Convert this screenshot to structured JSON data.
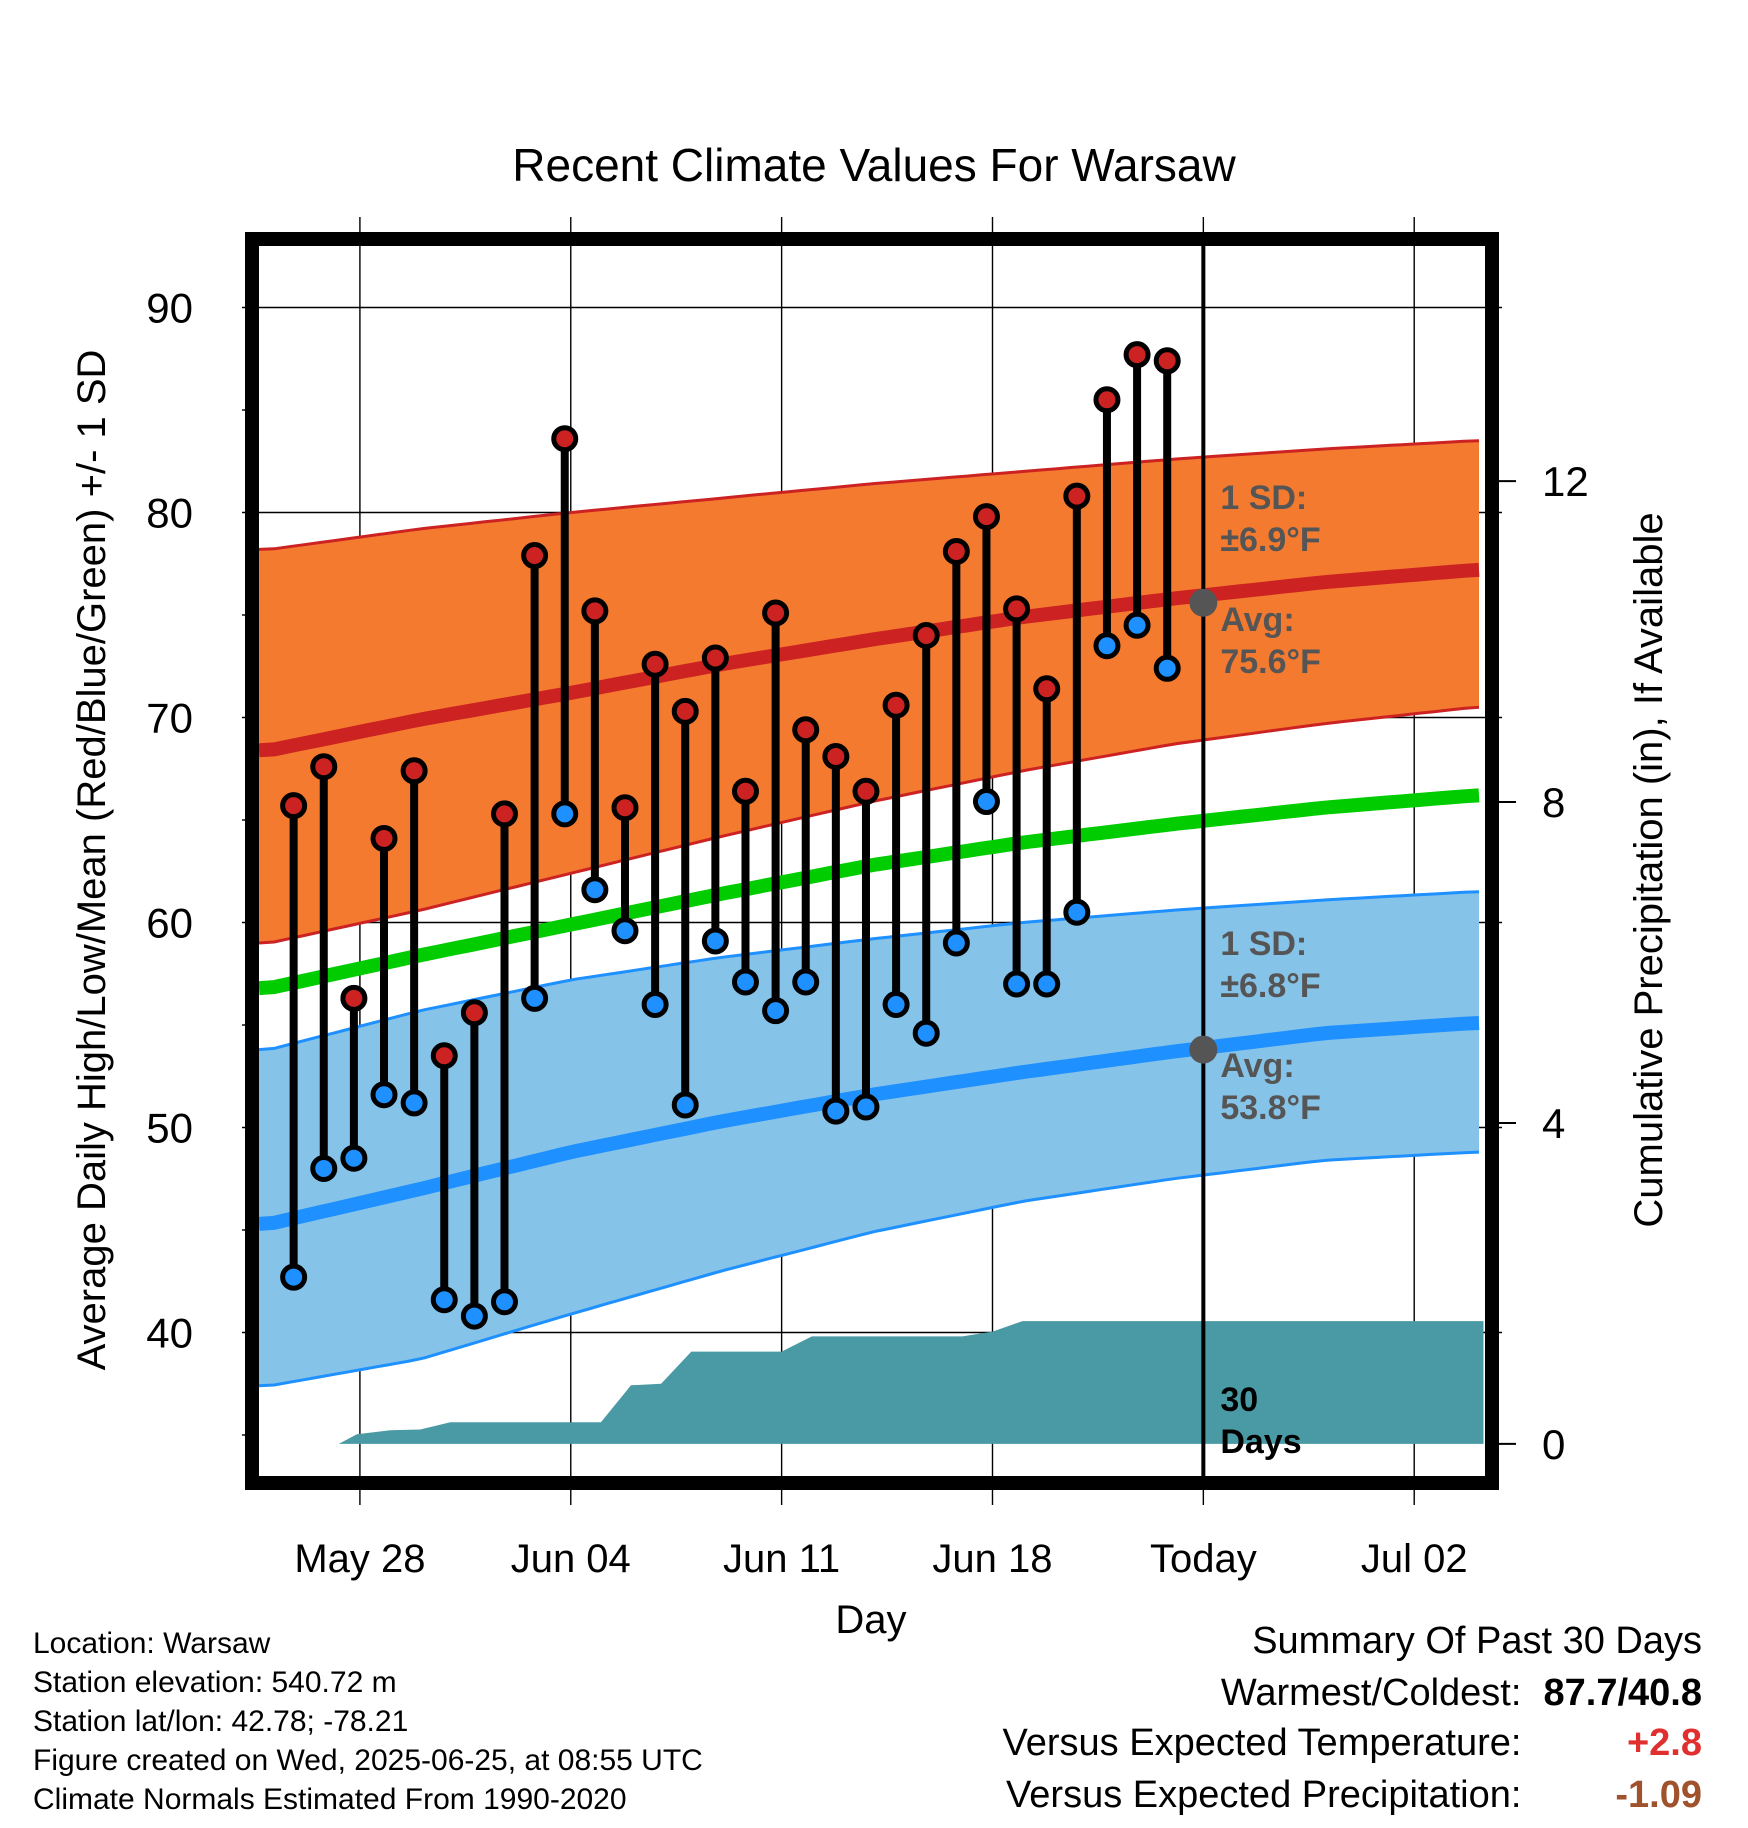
{
  "page": {
    "title": "Recent Climate Values For Warsaw"
  },
  "chart_data": {
    "type": "line",
    "title": "Recent Climate Values For Warsaw",
    "xlabel": "Day",
    "ylabel": "Average Daily High/Low/Mean (Red/Blue/Green) +/- 1 SD",
    "y2label": "Cumulative Precipitation (in), If Available",
    "x_ticks": [
      {
        "day": 3,
        "label": "May 28"
      },
      {
        "day": 10,
        "label": "Jun 04"
      },
      {
        "day": 17,
        "label": "Jun 11"
      },
      {
        "day": 24,
        "label": "Jun 18"
      },
      {
        "day": 31,
        "label": "Today"
      },
      {
        "day": 38,
        "label": "Jul 02"
      }
    ],
    "x_range_days": [
      -0.35,
      40.35
    ],
    "ylim": [
      33,
      93
    ],
    "y_ticks": [
      40,
      50,
      60,
      70,
      80,
      90
    ],
    "y2lim": [
      -0.4,
      14.93
    ],
    "y2_ticks": [
      0,
      4,
      8,
      12
    ],
    "grid": true,
    "today_day": 31,
    "normals": {
      "days": [
        0,
        5,
        10,
        15,
        20,
        25,
        30,
        35,
        40
      ],
      "high_avg": [
        68.4,
        69.9,
        71.2,
        72.6,
        73.8,
        74.9,
        75.8,
        76.6,
        77.2
      ],
      "high_upper": [
        78.2,
        79.2,
        80.0,
        80.7,
        81.4,
        82.0,
        82.6,
        83.1,
        83.5
      ],
      "high_lower": [
        59.0,
        60.6,
        62.4,
        64.2,
        65.9,
        67.4,
        68.7,
        69.7,
        70.5
      ],
      "mean_avg": [
        56.8,
        58.4,
        59.9,
        61.4,
        62.8,
        63.9,
        64.8,
        65.6,
        66.2
      ],
      "low_avg": [
        45.3,
        47.0,
        48.8,
        50.3,
        51.6,
        52.7,
        53.7,
        54.6,
        55.1
      ],
      "low_upper": [
        53.8,
        55.7,
        57.2,
        58.3,
        59.2,
        60.0,
        60.6,
        61.1,
        61.5
      ],
      "low_lower": [
        37.4,
        38.7,
        40.9,
        43.0,
        44.9,
        46.4,
        47.5,
        48.4,
        48.8
      ]
    },
    "series": [
      {
        "name": "High",
        "color": "#cc2222",
        "days": [
          0.8,
          1.8,
          2.8,
          3.8,
          4.8,
          5.8,
          6.8,
          7.8,
          8.8,
          9.8,
          10.8,
          11.8,
          12.8,
          13.8,
          14.8,
          15.8,
          16.8,
          17.8,
          18.8,
          19.8,
          20.8,
          21.8,
          22.8,
          23.8,
          24.8,
          25.8,
          26.8,
          27.8,
          28.8,
          29.8
        ],
        "values": [
          65.7,
          67.6,
          56.3,
          64.1,
          67.4,
          53.5,
          55.6,
          65.3,
          77.9,
          83.6,
          75.2,
          65.6,
          72.6,
          70.3,
          72.9,
          66.4,
          75.1,
          69.4,
          68.1,
          66.4,
          70.6,
          74.0,
          78.1,
          79.8,
          75.3,
          71.4,
          80.8,
          85.5,
          87.7,
          87.4
        ]
      },
      {
        "name": "Low",
        "color": "#1e90ff",
        "days": [
          0.8,
          1.8,
          2.8,
          3.8,
          4.8,
          5.8,
          6.8,
          7.8,
          8.8,
          9.8,
          10.8,
          11.8,
          12.8,
          13.8,
          14.8,
          15.8,
          16.8,
          17.8,
          18.8,
          19.8,
          20.8,
          21.8,
          22.8,
          23.8,
          24.8,
          25.8,
          26.8,
          27.8,
          28.8,
          29.8
        ],
        "values": [
          42.7,
          48.0,
          48.5,
          51.6,
          51.2,
          41.6,
          40.8,
          41.5,
          56.3,
          65.3,
          61.6,
          59.6,
          56.0,
          51.1,
          59.1,
          57.1,
          55.7,
          57.1,
          50.8,
          51.0,
          56.0,
          54.6,
          59.0,
          65.9,
          57.0,
          57.0,
          60.5,
          73.5,
          74.5,
          72.4
        ]
      }
    ],
    "precip_cumulative": {
      "days": [
        2.3,
        2.9,
        4.0,
        5.0,
        6.0,
        7.0,
        8.0,
        9.0,
        10.0,
        11.0,
        12.0,
        13.0,
        14.0,
        15.0,
        16.0,
        17.0,
        18.0,
        19.0,
        20.0,
        21.0,
        22.0,
        23.0,
        24.0,
        25.0,
        26.0,
        27.0,
        28.0,
        29.0,
        30.0,
        31.0,
        40.3
      ],
      "values": [
        0.0,
        0.12,
        0.17,
        0.18,
        0.27,
        0.27,
        0.27,
        0.27,
        0.27,
        0.27,
        0.73,
        0.75,
        1.15,
        1.15,
        1.15,
        1.15,
        1.34,
        1.34,
        1.34,
        1.34,
        1.34,
        1.34,
        1.4,
        1.53,
        1.53,
        1.53,
        1.53,
        1.53,
        1.53,
        1.53,
        1.53
      ],
      "color": "#4a9aa5"
    }
  },
  "annotations": {
    "high_sd_label_1": "1 SD:",
    "high_sd_label_2": "±6.9°F",
    "high_avg_label_1": "Avg:",
    "high_avg_label_2": "75.6°F",
    "high_avg_today": 75.6,
    "low_sd_label_1": "1 SD:",
    "low_sd_label_2": "±6.8°F",
    "low_avg_label_1": "Avg:",
    "low_avg_label_2": "53.8°F",
    "low_avg_today": 53.8,
    "days_label_1": "30",
    "days_label_2": "Days"
  },
  "station": {
    "location": "Location: Warsaw",
    "elevation": "Station elevation: 540.72 m",
    "latlon": "Station lat/lon: 42.78; -78.21",
    "created": "Figure created on Wed, 2025-06-25, at 08:55 UTC",
    "normals": "Climate Normals Estimated From 1990-2020"
  },
  "summary": {
    "heading": "Summary Of Past 30 Days",
    "warmest_label": "Warmest/Coldest:",
    "warmest_value": "87.7/40.8",
    "temp_label": "Versus Expected Temperature:",
    "temp_value": "+2.8",
    "precip_label": "Versus Expected Precipitation:",
    "precip_value": "-1.09"
  },
  "colors": {
    "high_band": "#f47a30",
    "high_line": "#cc2222",
    "mean_line": "#00cc00",
    "low_band": "#86c3e8",
    "low_line": "#1e90ff",
    "precip_fill": "#4a9aa5",
    "annotation_text": "#555555"
  }
}
